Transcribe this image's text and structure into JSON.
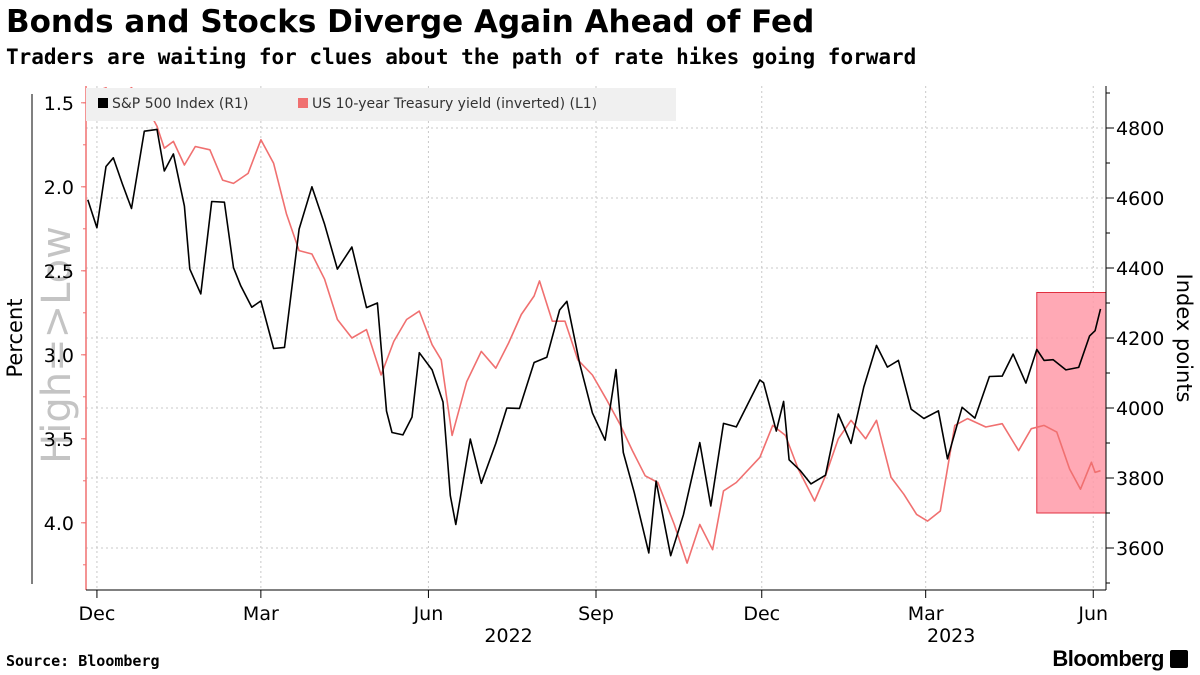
{
  "header": {
    "title": "Bonds and Stocks Diverge Again Ahead of Fed",
    "subtitle": "Traders are waiting for clues about the path of rate hikes going forward"
  },
  "footer": {
    "source": "Source: Bloomberg",
    "brand": "Bloomberg"
  },
  "colors": {
    "sp500": "#000000",
    "yield": "#f07070",
    "highlight_fill": "#ff9aa8",
    "highlight_stroke": "#e03040",
    "grid": "#c8c8c8"
  },
  "chart_data": {
    "type": "line",
    "title": "Bonds and Stocks Diverge Again Ahead of Fed",
    "subtitle": "Traders are waiting for clues about the path of rate hikes going forward",
    "left_axis": {
      "label": "Percent",
      "inverted": true,
      "range": [
        1.4,
        4.4
      ],
      "ticks": [
        "1.5",
        "2.0",
        "2.5",
        "3.0",
        "3.5",
        "4.0"
      ],
      "watermark": "High=>Low"
    },
    "right_axis": {
      "label": "Index points",
      "range": [
        3480,
        4920
      ],
      "ticks": [
        "3600",
        "3800",
        "4000",
        "4200",
        "4400",
        "4600",
        "4800"
      ]
    },
    "x_axis": {
      "range": [
        "2021-11-25",
        "2023-06-08"
      ],
      "ticks": [
        {
          "date": "2021-12-01",
          "label": "Dec"
        },
        {
          "date": "2022-03-01",
          "label": "Mar"
        },
        {
          "date": "2022-06-01",
          "label": "Jun"
        },
        {
          "date": "2022-09-01",
          "label": "Sep"
        },
        {
          "date": "2022-12-01",
          "label": "Dec"
        },
        {
          "date": "2023-03-01",
          "label": "Mar"
        },
        {
          "date": "2023-06-01",
          "label": "Jun"
        }
      ],
      "year_labels": [
        {
          "date": "2022-07-15",
          "label": "2022"
        },
        {
          "date": "2023-03-15",
          "label": "2023"
        }
      ]
    },
    "legend": {
      "position": "top-left",
      "entries": [
        "S&P 500 Index (R1)",
        "US 10-year Treasury yield (inverted) (L1)"
      ]
    },
    "highlight": {
      "x_start": "2023-05-01",
      "x_end": "2023-06-08",
      "y_top": 4330,
      "y_bottom": 3700,
      "axis": "right"
    },
    "series": [
      {
        "name": "S&P 500 Index (R1)",
        "axis": "right",
        "x": [
          "2021-11-26",
          "2021-12-01",
          "2021-12-06",
          "2021-12-10",
          "2021-12-15",
          "2021-12-20",
          "2021-12-27",
          "2022-01-03",
          "2022-01-07",
          "2022-01-12",
          "2022-01-18",
          "2022-01-21",
          "2022-01-27",
          "2022-02-02",
          "2022-02-09",
          "2022-02-14",
          "2022-02-18",
          "2022-02-24",
          "2022-03-01",
          "2022-03-08",
          "2022-03-14",
          "2022-03-22",
          "2022-03-29",
          "2022-04-05",
          "2022-04-12",
          "2022-04-20",
          "2022-04-28",
          "2022-05-04",
          "2022-05-09",
          "2022-05-12",
          "2022-05-18",
          "2022-05-23",
          "2022-05-27",
          "2022-06-03",
          "2022-06-09",
          "2022-06-13",
          "2022-06-16",
          "2022-06-24",
          "2022-06-30",
          "2022-07-08",
          "2022-07-14",
          "2022-07-21",
          "2022-07-29",
          "2022-08-05",
          "2022-08-12",
          "2022-08-16",
          "2022-08-23",
          "2022-08-30",
          "2022-09-06",
          "2022-09-12",
          "2022-09-16",
          "2022-09-22",
          "2022-09-30",
          "2022-10-04",
          "2022-10-12",
          "2022-10-19",
          "2022-10-28",
          "2022-11-03",
          "2022-11-10",
          "2022-11-17",
          "2022-11-30",
          "2022-12-02",
          "2022-12-09",
          "2022-12-13",
          "2022-12-16",
          "2022-12-22",
          "2022-12-28",
          "2023-01-05",
          "2023-01-12",
          "2023-01-19",
          "2023-01-26",
          "2023-02-02",
          "2023-02-08",
          "2023-02-14",
          "2023-02-21",
          "2023-02-28",
          "2023-03-08",
          "2023-03-13",
          "2023-03-21",
          "2023-03-28",
          "2023-04-05",
          "2023-04-12",
          "2023-04-18",
          "2023-04-25",
          "2023-05-01",
          "2023-05-05",
          "2023-05-10",
          "2023-05-17",
          "2023-05-24",
          "2023-05-30",
          "2023-06-02",
          "2023-06-05"
        ],
        "values": [
          4595,
          4515,
          4690,
          4715,
          4640,
          4570,
          4791,
          4796,
          4677,
          4726,
          4577,
          4397,
          4326,
          4590,
          4588,
          4401,
          4349,
          4288,
          4306,
          4170,
          4173,
          4511,
          4632,
          4525,
          4397,
          4460,
          4287,
          4300,
          3991,
          3930,
          3923,
          3974,
          4158,
          4109,
          4017,
          3750,
          3667,
          3911,
          3785,
          3899,
          4000,
          3999,
          4130,
          4145,
          4280,
          4305,
          4128,
          3986,
          3908,
          4110,
          3873,
          3758,
          3586,
          3791,
          3578,
          3695,
          3901,
          3720,
          3956,
          3946,
          4080,
          4072,
          3934,
          4019,
          3852,
          3822,
          3783,
          3808,
          3983,
          3899,
          4060,
          4179,
          4117,
          4136,
          3997,
          3970,
          3992,
          3855,
          4002,
          3971,
          4090,
          4091,
          4154,
          4071,
          4167,
          4136,
          4138,
          4109,
          4116,
          4206,
          4221,
          4283
        ]
      },
      {
        "name": "US 10-year Treasury yield (inverted) (L1)",
        "axis": "left",
        "x": [
          "2021-11-26",
          "2021-12-01",
          "2021-12-06",
          "2021-12-10",
          "2021-12-15",
          "2021-12-20",
          "2021-12-27",
          "2022-01-03",
          "2022-01-07",
          "2022-01-12",
          "2022-01-18",
          "2022-01-24",
          "2022-02-01",
          "2022-02-08",
          "2022-02-14",
          "2022-02-22",
          "2022-03-01",
          "2022-03-08",
          "2022-03-15",
          "2022-03-22",
          "2022-03-29",
          "2022-04-05",
          "2022-04-12",
          "2022-04-20",
          "2022-04-28",
          "2022-05-06",
          "2022-05-13",
          "2022-05-20",
          "2022-05-27",
          "2022-06-03",
          "2022-06-08",
          "2022-06-14",
          "2022-06-22",
          "2022-06-30",
          "2022-07-08",
          "2022-07-15",
          "2022-07-22",
          "2022-07-29",
          "2022-08-01",
          "2022-08-08",
          "2022-08-15",
          "2022-08-22",
          "2022-08-30",
          "2022-09-07",
          "2022-09-14",
          "2022-09-21",
          "2022-09-28",
          "2022-10-05",
          "2022-10-14",
          "2022-10-21",
          "2022-10-28",
          "2022-11-04",
          "2022-11-10",
          "2022-11-17",
          "2022-11-30",
          "2022-12-07",
          "2022-12-14",
          "2022-12-21",
          "2022-12-30",
          "2023-01-05",
          "2023-01-12",
          "2023-01-19",
          "2023-01-27",
          "2023-02-02",
          "2023-02-10",
          "2023-02-17",
          "2023-02-24",
          "2023-03-02",
          "2023-03-09",
          "2023-03-17",
          "2023-03-24",
          "2023-04-03",
          "2023-04-12",
          "2023-04-21",
          "2023-04-28",
          "2023-05-05",
          "2023-05-12",
          "2023-05-19",
          "2023-05-25",
          "2023-05-31",
          "2023-06-02",
          "2023-06-05"
        ],
        "values": [
          1.47,
          1.43,
          1.41,
          1.48,
          1.45,
          1.41,
          1.5,
          1.64,
          1.77,
          1.73,
          1.87,
          1.76,
          1.78,
          1.96,
          1.98,
          1.92,
          1.72,
          1.86,
          2.16,
          2.38,
          2.4,
          2.55,
          2.79,
          2.9,
          2.85,
          3.12,
          2.92,
          2.79,
          2.74,
          2.94,
          3.03,
          3.48,
          3.16,
          2.98,
          3.08,
          2.93,
          2.76,
          2.65,
          2.56,
          2.8,
          2.8,
          3.03,
          3.12,
          3.27,
          3.41,
          3.57,
          3.72,
          3.76,
          4.01,
          4.24,
          4.01,
          4.16,
          3.81,
          3.76,
          3.61,
          3.42,
          3.48,
          3.68,
          3.87,
          3.72,
          3.5,
          3.39,
          3.5,
          3.39,
          3.73,
          3.83,
          3.95,
          3.99,
          3.93,
          3.42,
          3.38,
          3.43,
          3.41,
          3.57,
          3.44,
          3.42,
          3.46,
          3.68,
          3.8,
          3.64,
          3.7,
          3.69
        ]
      }
    ]
  }
}
